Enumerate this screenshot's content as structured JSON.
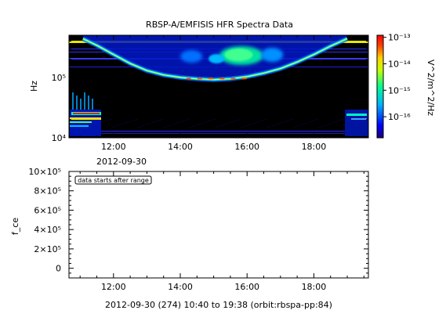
{
  "chart_data": [
    {
      "type": "heatmap",
      "title": "RBSP-A/EMFISIS  HFR Spectra Data",
      "ylabel": "Hz",
      "x_ticks": [
        "12:00",
        "14:00",
        "16:00",
        "18:00"
      ],
      "date_label": "2012-09-30",
      "xlim": [
        "10:40",
        "19:38"
      ],
      "ylim": [
        10000,
        500000
      ],
      "y_scale": "log",
      "y_ticks": [
        {
          "value": 10000,
          "label": "10⁴"
        },
        {
          "value": 100000,
          "label": "10⁵"
        }
      ],
      "colorbar": {
        "label": "V^2/m^2/Hz",
        "scale": "log",
        "range": [
          1.6e-17,
          1.2e-13
        ],
        "ticks": [
          {
            "value": 1e-13,
            "label": "10⁻¹³"
          },
          {
            "value": 1e-14,
            "label": "10⁻¹⁴"
          },
          {
            "value": 1e-15,
            "label": "10⁻¹⁵"
          },
          {
            "value": 1e-16,
            "label": "10⁻¹⁶"
          }
        ],
        "colors": [
          "#1a007a",
          "#0000ff",
          "#00b0ff",
          "#00ff90",
          "#c8ff00",
          "#ffd000",
          "#ff4000",
          "#ff0000"
        ]
      },
      "features": {
        "plasma_line": [
          {
            "t": "11:05",
            "f": 440000
          },
          {
            "t": "11:30",
            "f": 340000
          },
          {
            "t": "12:00",
            "f": 240000
          },
          {
            "t": "12:30",
            "f": 170000
          },
          {
            "t": "13:00",
            "f": 130000
          },
          {
            "t": "13:30",
            "f": 110000
          },
          {
            "t": "14:00",
            "f": 100000
          },
          {
            "t": "14:30",
            "f": 95000
          },
          {
            "t": "15:00",
            "f": 92000
          },
          {
            "t": "15:30",
            "f": 95000
          },
          {
            "t": "16:00",
            "f": 103000
          },
          {
            "t": "16:30",
            "f": 118000
          },
          {
            "t": "17:00",
            "f": 140000
          },
          {
            "t": "17:30",
            "f": 180000
          },
          {
            "t": "18:00",
            "f": 240000
          },
          {
            "t": "18:30",
            "f": 330000
          },
          {
            "t": "19:00",
            "f": 440000
          }
        ]
      }
    },
    {
      "type": "line",
      "ylabel": "f_ce",
      "annotation": "data starts after range",
      "x_ticks": [
        "12:00",
        "14:00",
        "16:00",
        "18:00"
      ],
      "xlim": [
        "10:40",
        "19:38"
      ],
      "ylim": [
        -100000,
        1000000
      ],
      "y_ticks": [
        {
          "value": 0,
          "label": "0"
        },
        {
          "value": 200000,
          "label": "2×10⁵"
        },
        {
          "value": 400000,
          "label": "4×10⁵"
        },
        {
          "value": 600000,
          "label": "6×10⁵"
        },
        {
          "value": 800000,
          "label": "8×10⁵"
        },
        {
          "value": 1000000,
          "label": "10×10⁵"
        }
      ],
      "series": []
    }
  ],
  "footer": "2012-09-30 (274) 10:40 to 19:38 (orbit:rbspa-pp:84)"
}
